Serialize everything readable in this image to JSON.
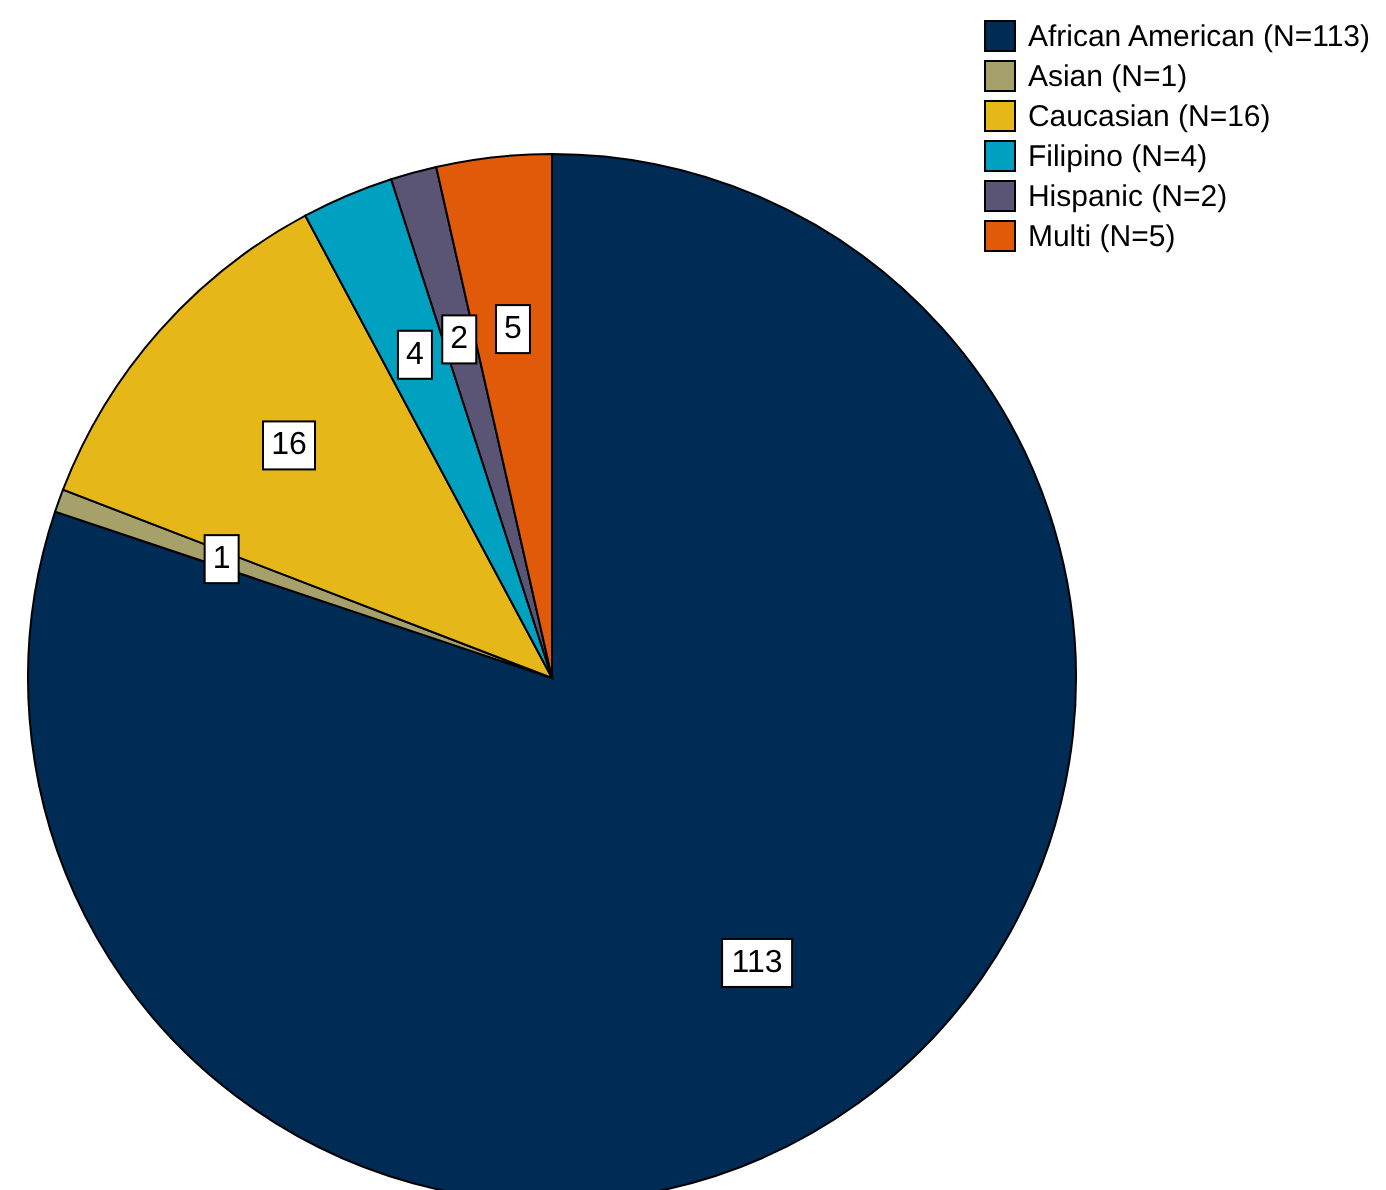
{
  "chart_data": {
    "type": "pie",
    "categories": [
      "African American (N=113)",
      "Asian (N=1)",
      "Caucasian (N=16)",
      "Filipino (N=4)",
      "Hispanic (N=2)",
      "Multi (N=5)"
    ],
    "values": [
      113,
      1,
      16,
      4,
      2,
      5
    ],
    "colors": [
      "#002b55",
      "#a6a06a",
      "#e5b719",
      "#00a0c0",
      "#5b5575",
      "#e05a0a"
    ],
    "data_labels": true,
    "legend": "top right"
  }
}
